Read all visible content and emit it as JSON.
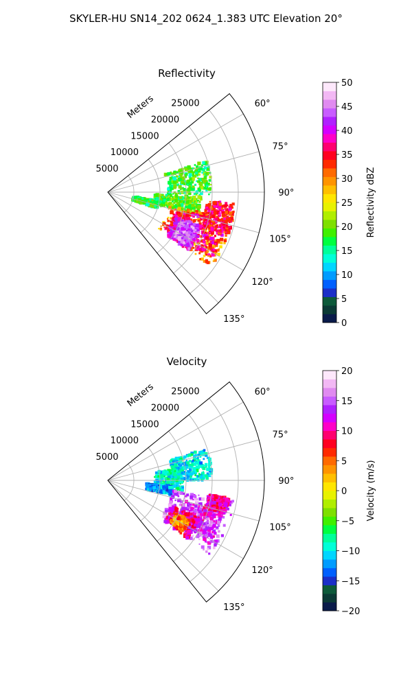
{
  "suptitle": "SKYLER-HU  SN14_202  0624_1.383 UTC Elevation 20°",
  "colors": {
    "grid": "#b0b0b0",
    "axis": "#000000",
    "background": "#ffffff"
  },
  "chart_data": [
    {
      "type": "heatmap",
      "projection": "polar-sector",
      "title": "Reflectivity",
      "radial_label": "Meters",
      "radial_ticks": [
        5000,
        10000,
        15000,
        20000,
        25000
      ],
      "radial_tick_labels": [
        "5000",
        "10000",
        "15000",
        "20000",
        "25000"
      ],
      "radial_range": [
        0,
        30000
      ],
      "angle_range_deg": [
        51,
        141
      ],
      "angle_ticks": [
        60,
        75,
        90,
        105,
        120,
        135
      ],
      "angle_tick_labels": [
        "60°",
        "75°",
        "90°",
        "105°",
        "120°",
        "135°"
      ],
      "grid": true,
      "colorbar": {
        "label": "Reflectivity dBZ",
        "range": [
          0,
          50
        ],
        "ticks": [
          0,
          5,
          10,
          15,
          20,
          25,
          30,
          35,
          40,
          45,
          50
        ],
        "tick_labels": [
          "0",
          "5",
          "10",
          "15",
          "20",
          "25",
          "30",
          "35",
          "40",
          "45",
          "50"
        ],
        "colormap": [
          "#0a1b4a",
          "#0b3a35",
          "#0d5a3a",
          "#1b2fc8",
          "#0060ff",
          "#009cff",
          "#00d6ff",
          "#00ffd8",
          "#00ff9a",
          "#00ff40",
          "#40f000",
          "#7ee000",
          "#b0ee00",
          "#e8f200",
          "#ffe600",
          "#ffbf00",
          "#ff9400",
          "#ff6a00",
          "#ff2a00",
          "#ff0020",
          "#ff0070",
          "#ff00c8",
          "#d400ff",
          "#b020ff",
          "#c85cff",
          "#e08af0",
          "#f2b8f4",
          "#fde8fb"
        ]
      },
      "echo_regions": [
        {
          "az": [
            72,
            92
          ],
          "range": [
            11500,
            20000
          ],
          "value": 18
        },
        {
          "az": [
            93,
            104
          ],
          "range": [
            9000,
            18000
          ],
          "value": 19
        },
        {
          "az": [
            100,
            108
          ],
          "range": [
            5000,
            10000
          ],
          "value": 17
        },
        {
          "az": [
            102,
            126
          ],
          "range": [
            12000,
            24500
          ],
          "value": 30
        },
        {
          "az": [
            104,
            124
          ],
          "range": [
            13000,
            23500
          ],
          "value": 36
        },
        {
          "az": [
            110,
            126
          ],
          "range": [
            14000,
            19000
          ],
          "value": 41
        },
        {
          "az": [
            112,
            124
          ],
          "range": [
            15000,
            18500
          ],
          "value": 44
        },
        {
          "az": [
            95,
            110
          ],
          "range": [
            19000,
            24500
          ],
          "value": 35
        }
      ]
    },
    {
      "type": "heatmap",
      "projection": "polar-sector",
      "title": "Velocity",
      "radial_label": "Meters",
      "radial_ticks": [
        5000,
        10000,
        15000,
        20000,
        25000
      ],
      "radial_tick_labels": [
        "5000",
        "10000",
        "15000",
        "20000",
        "25000"
      ],
      "radial_range": [
        0,
        30000
      ],
      "angle_range_deg": [
        51,
        141
      ],
      "angle_ticks": [
        60,
        75,
        90,
        105,
        120,
        135
      ],
      "angle_tick_labels": [
        "60°",
        "75°",
        "90°",
        "105°",
        "120°",
        "135°"
      ],
      "grid": true,
      "colorbar": {
        "label": "Velocity (m/s)",
        "range": [
          -20,
          20
        ],
        "ticks": [
          -20,
          -15,
          -10,
          -5,
          0,
          5,
          10,
          15,
          20
        ],
        "tick_labels": [
          "−20",
          "−15",
          "−10",
          "−5",
          "0",
          "5",
          "10",
          "15",
          "20"
        ],
        "colormap": [
          "#0a1b4a",
          "#0b3a35",
          "#0d5a3a",
          "#1b2fc8",
          "#0060ff",
          "#009cff",
          "#00d6ff",
          "#00ffd8",
          "#00ff9a",
          "#00ff40",
          "#40f000",
          "#7ee000",
          "#b0ee00",
          "#e8f200",
          "#ffe600",
          "#ffbf00",
          "#ff9400",
          "#ff6a00",
          "#ff2a00",
          "#ff0020",
          "#ff0070",
          "#ff00c8",
          "#d400ff",
          "#b020ff",
          "#c85cff",
          "#e08af0",
          "#f2b8f4",
          "#fde8fb"
        ]
      },
      "echo_regions": [
        {
          "az": [
            72,
            90
          ],
          "range": [
            12500,
            20000
          ],
          "value": -10
        },
        {
          "az": [
            80,
            100
          ],
          "range": [
            9000,
            14500
          ],
          "value": -9
        },
        {
          "az": [
            95,
            103
          ],
          "range": [
            7500,
            12500
          ],
          "value": -12
        },
        {
          "az": [
            99,
            126
          ],
          "range": [
            12500,
            24500
          ],
          "value": 15
        },
        {
          "az": [
            105,
            122
          ],
          "range": [
            15000,
            23000
          ],
          "value": 13
        },
        {
          "az": [
            112,
            126
          ],
          "range": [
            13500,
            19000
          ],
          "value": 10
        },
        {
          "az": [
            116,
            124
          ],
          "range": [
            14500,
            17500
          ],
          "value": 4
        },
        {
          "az": [
            98,
            106
          ],
          "range": [
            19500,
            23500
          ],
          "value": 10
        }
      ]
    }
  ]
}
